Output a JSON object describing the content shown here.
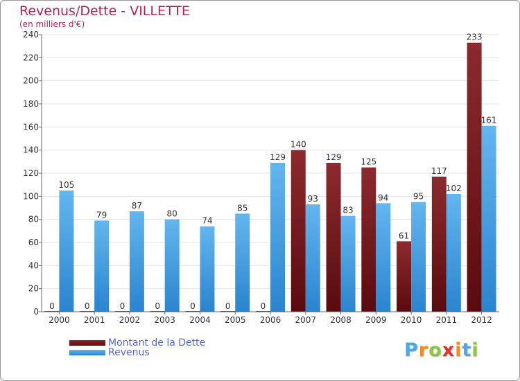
{
  "colors": {
    "dette_top": "#8c2a2e",
    "dette_bottom": "#5a0a0d",
    "revenus_top": "#63b6ee",
    "revenus_bottom": "#2a84cf",
    "axis": "#666666",
    "grid": "#e4e4e4"
  },
  "chart_data": {
    "type": "bar",
    "title": "Revenus/Dette - VILLETTE",
    "subtitle": "(en milliers d'€)",
    "xlabel": "",
    "ylabel": "",
    "ylim": [
      0,
      240
    ],
    "yticks": [
      0,
      20,
      40,
      60,
      80,
      100,
      120,
      140,
      160,
      180,
      200,
      220,
      240
    ],
    "grid": true,
    "legend_position": "bottom-left",
    "categories": [
      "2000",
      "2001",
      "2002",
      "2003",
      "2004",
      "2005",
      "2006",
      "2007",
      "2008",
      "2009",
      "2010",
      "2011",
      "2012"
    ],
    "series": [
      {
        "name": "Montant de la Dette",
        "values": [
          0,
          0,
          0,
          0,
          0,
          0,
          0,
          140,
          129,
          125,
          61,
          117,
          233
        ]
      },
      {
        "name": "Revenus",
        "values": [
          105,
          79,
          87,
          80,
          74,
          85,
          129,
          93,
          83,
          94,
          95,
          102,
          161
        ]
      }
    ]
  },
  "logo": {
    "letters": [
      "P",
      "r",
      "o",
      "x",
      "i",
      "t",
      "i"
    ],
    "letter_colors": [
      "#4aa8e6",
      "#f08c20",
      "#8cc63f",
      "#e8302a",
      "#f08c20",
      "#4aa8e6",
      "#8cc63f"
    ]
  }
}
